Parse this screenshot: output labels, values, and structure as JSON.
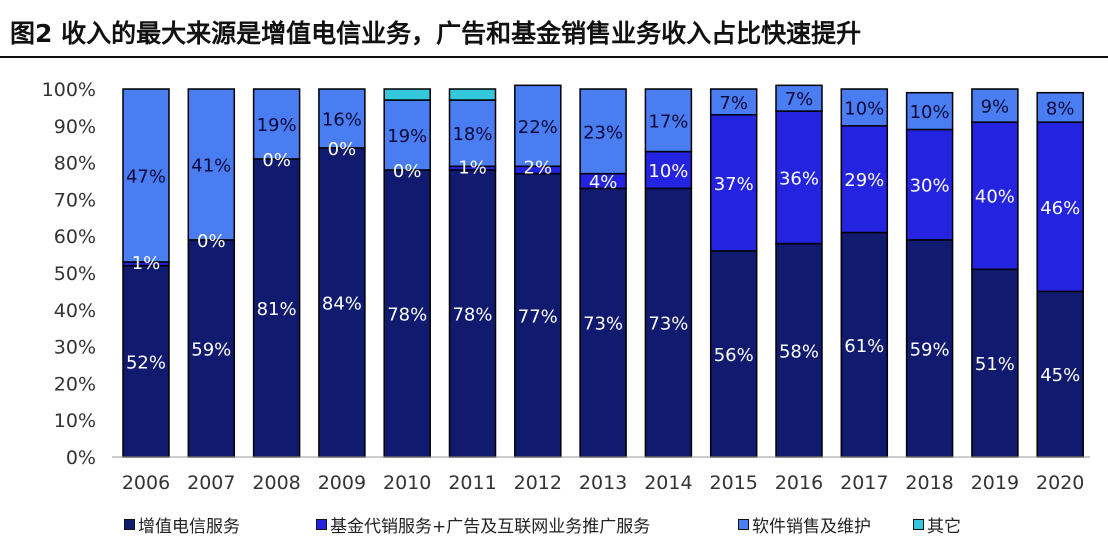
{
  "title": "图2  收入的最大来源是增值电信业务，广告和基金销售业务收入占比快速提升",
  "chart_data": {
    "type": "bar",
    "stacked": true,
    "categories": [
      "2006",
      "2007",
      "2008",
      "2009",
      "2010",
      "2011",
      "2012",
      "2013",
      "2014",
      "2015",
      "2016",
      "2017",
      "2018",
      "2019",
      "2020"
    ],
    "yticks": [
      "0%",
      "10%",
      "20%",
      "30%",
      "40%",
      "50%",
      "60%",
      "70%",
      "80%",
      "90%",
      "100%"
    ],
    "ylim": [
      0,
      100
    ],
    "series": [
      {
        "name": "增值电信服务",
        "color": "#101a6e",
        "values": [
          52,
          59,
          81,
          84,
          78,
          78,
          77,
          73,
          73,
          56,
          58,
          61,
          59,
          51,
          45
        ],
        "labels": [
          "52%",
          "59%",
          "81%",
          "84%",
          "78%",
          "78%",
          "77%",
          "73%",
          "73%",
          "56%",
          "58%",
          "61%",
          "59%",
          "51%",
          "45%"
        ]
      },
      {
        "name": "基金代销服务+广告及互联网业务推广服务",
        "color": "#2323e0",
        "values": [
          1,
          0,
          0,
          0,
          0,
          1,
          2,
          4,
          10,
          37,
          36,
          29,
          30,
          40,
          46
        ],
        "labels": [
          "1%",
          "0%",
          "0%",
          "0%",
          "0%",
          "1%",
          "2%",
          "4%",
          "10%",
          "37%",
          "36%",
          "29%",
          "30%",
          "40%",
          "46%"
        ]
      },
      {
        "name": "软件销售及维护",
        "color": "#4a7cf2",
        "values": [
          47,
          41,
          19,
          16,
          19,
          18,
          22,
          23,
          17,
          7,
          7,
          10,
          10,
          9,
          8
        ],
        "labels": [
          "47%",
          "41%",
          "19%",
          "16%",
          "19%",
          "18%",
          "22%",
          "23%",
          "17%",
          "7%",
          "7%",
          "10%",
          "10%",
          "9%",
          "8%"
        ]
      },
      {
        "name": "其它",
        "color": "#34c8dc",
        "values": [
          0,
          0,
          0,
          0,
          3,
          3,
          0,
          0,
          0,
          0,
          0,
          0,
          0,
          0,
          0
        ],
        "labels": [
          "",
          "",
          "",
          "",
          "",
          "",
          "",
          "",
          "",
          "",
          "",
          "",
          "",
          "",
          ""
        ]
      }
    ],
    "grid": false,
    "legend_position": "bottom"
  }
}
